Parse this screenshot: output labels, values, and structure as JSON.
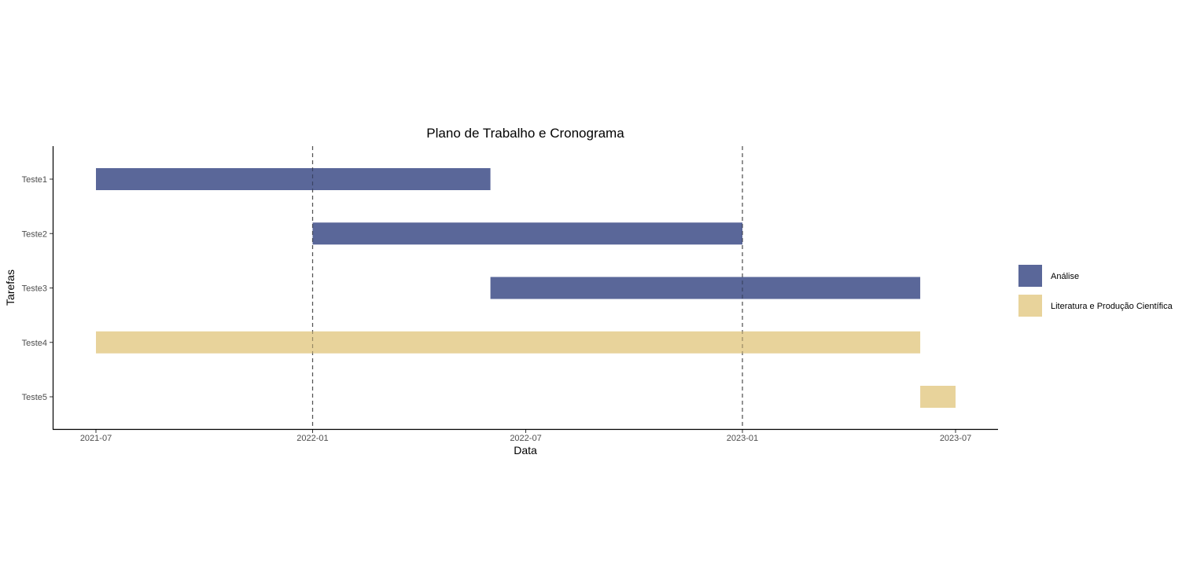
{
  "chart_data": {
    "type": "gantt",
    "title": "Plano de Trabalho e Cronograma",
    "xlabel": "Data",
    "ylabel": "Tarefas",
    "xlim": [
      "2021-06-01",
      "2023-07-31"
    ],
    "x_ticks": [
      "2021-07",
      "2022-01",
      "2022-07",
      "2023-01",
      "2023-07"
    ],
    "vertical_reference_lines": [
      "2022-01-01",
      "2023-01-01"
    ],
    "tasks": [
      {
        "task": "Teste1",
        "start": "2021-07-01",
        "end": "2022-06-01",
        "category": "Análise"
      },
      {
        "task": "Teste2",
        "start": "2022-01-01",
        "end": "2023-01-01",
        "category": "Análise"
      },
      {
        "task": "Teste3",
        "start": "2022-06-01",
        "end": "2023-06-01",
        "category": "Análise"
      },
      {
        "task": "Teste4",
        "start": "2021-07-01",
        "end": "2023-06-01",
        "category": "Literatura e Produção Científica"
      },
      {
        "task": "Teste5",
        "start": "2023-06-01",
        "end": "2023-07-01",
        "category": "Literatura e Produção Científica"
      }
    ],
    "legend": {
      "placement": "right",
      "entries": [
        {
          "label": "Análise",
          "color": "#5a6799"
        },
        {
          "label": "Literatura e Produção Científica",
          "color": "#e8d39b"
        }
      ]
    },
    "grid": false
  }
}
